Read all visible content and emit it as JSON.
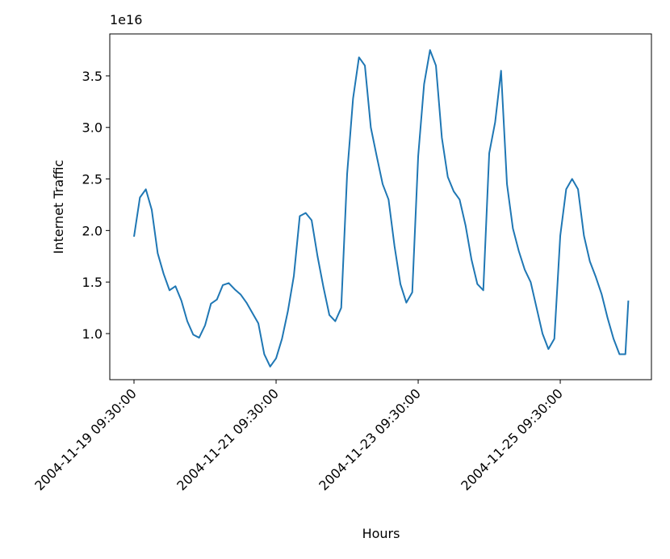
{
  "chart_data": {
    "type": "line",
    "offset_text": "1e16",
    "x_label": "Hours",
    "y_label": "Internet Traffic",
    "color": "#1f77b4",
    "x": [
      "2004-11-19 09:30:00",
      "2004-11-19 11:30:00",
      "2004-11-19 13:30:00",
      "2004-11-19 15:30:00",
      "2004-11-19 17:30:00",
      "2004-11-19 19:30:00",
      "2004-11-19 21:30:00",
      "2004-11-19 23:30:00",
      "2004-11-20 01:30:00",
      "2004-11-20 03:30:00",
      "2004-11-20 05:30:00",
      "2004-11-20 07:30:00",
      "2004-11-20 09:30:00",
      "2004-11-20 11:30:00",
      "2004-11-20 13:30:00",
      "2004-11-20 15:30:00",
      "2004-11-20 17:30:00",
      "2004-11-20 19:30:00",
      "2004-11-20 21:30:00",
      "2004-11-20 23:30:00",
      "2004-11-21 01:30:00",
      "2004-11-21 03:30:00",
      "2004-11-21 05:30:00",
      "2004-11-21 07:30:00",
      "2004-11-21 09:30:00",
      "2004-11-21 11:30:00",
      "2004-11-21 13:30:00",
      "2004-11-21 15:30:00",
      "2004-11-21 17:30:00",
      "2004-11-21 19:30:00",
      "2004-11-21 21:30:00",
      "2004-11-21 23:30:00",
      "2004-11-22 01:30:00",
      "2004-11-22 03:30:00",
      "2004-11-22 05:30:00",
      "2004-11-22 07:30:00",
      "2004-11-22 09:30:00",
      "2004-11-22 11:30:00",
      "2004-11-22 13:30:00",
      "2004-11-22 15:30:00",
      "2004-11-22 17:30:00",
      "2004-11-22 19:30:00",
      "2004-11-22 21:30:00",
      "2004-11-22 23:30:00",
      "2004-11-23 01:30:00",
      "2004-11-23 03:30:00",
      "2004-11-23 05:30:00",
      "2004-11-23 07:30:00",
      "2004-11-23 09:30:00",
      "2004-11-23 11:30:00",
      "2004-11-23 13:30:00",
      "2004-11-23 15:30:00",
      "2004-11-23 17:30:00",
      "2004-11-23 19:30:00",
      "2004-11-23 21:30:00",
      "2004-11-23 23:30:00",
      "2004-11-24 01:30:00",
      "2004-11-24 03:30:00",
      "2004-11-24 05:30:00",
      "2004-11-24 07:30:00",
      "2004-11-24 09:30:00",
      "2004-11-24 11:30:00",
      "2004-11-24 13:30:00",
      "2004-11-24 15:30:00",
      "2004-11-24 17:30:00",
      "2004-11-24 19:30:00",
      "2004-11-24 21:30:00",
      "2004-11-24 23:30:00",
      "2004-11-25 01:30:00",
      "2004-11-25 03:30:00",
      "2004-11-25 05:30:00",
      "2004-11-25 07:30:00",
      "2004-11-25 09:30:00",
      "2004-11-25 11:30:00",
      "2004-11-25 13:30:00",
      "2004-11-25 15:30:00",
      "2004-11-25 17:30:00",
      "2004-11-25 19:30:00",
      "2004-11-25 21:30:00",
      "2004-11-25 23:30:00",
      "2004-11-26 01:30:00",
      "2004-11-26 03:30:00",
      "2004-11-26 05:30:00",
      "2004-11-26 07:30:00",
      "2004-11-26 08:30:00"
    ],
    "values": [
      1.94,
      2.32,
      2.4,
      2.2,
      1.78,
      1.58,
      1.42,
      1.46,
      1.32,
      1.12,
      0.99,
      0.96,
      1.08,
      1.29,
      1.33,
      1.47,
      1.49,
      1.43,
      1.38,
      1.3,
      1.2,
      1.1,
      0.8,
      0.68,
      0.76,
      0.95,
      1.22,
      1.56,
      2.14,
      2.17,
      2.1,
      1.75,
      1.45,
      1.18,
      1.12,
      1.25,
      2.55,
      3.28,
      3.68,
      3.6,
      3.0,
      2.72,
      2.45,
      2.3,
      1.85,
      1.48,
      1.3,
      1.4,
      2.72,
      3.42,
      3.75,
      3.6,
      2.9,
      2.52,
      2.38,
      2.3,
      2.05,
      1.72,
      1.48,
      1.42,
      2.75,
      3.05,
      3.55,
      2.45,
      2.02,
      1.8,
      1.62,
      1.5,
      1.25,
      1.0,
      0.85,
      0.95,
      1.95,
      2.4,
      2.5,
      2.4,
      1.95,
      1.7,
      1.55,
      1.38,
      1.15,
      0.95,
      0.8,
      0.8,
      1.32
    ],
    "xlim": [
      "2004-11-19 01:19:00",
      "2004-11-26 16:18:00"
    ],
    "xticks": [
      "2004-11-19 09:30:00",
      "2004-11-21 09:30:00",
      "2004-11-23 09:30:00",
      "2004-11-25 09:30:00"
    ],
    "ylim": [
      0.553,
      3.907
    ],
    "yticks": [
      {
        "value": 1,
        "label": "1.0"
      },
      1.5,
      {
        "value": 2,
        "label": "2.0"
      },
      2.5,
      {
        "value": 3,
        "label": "3.0"
      },
      3.5
    ]
  }
}
